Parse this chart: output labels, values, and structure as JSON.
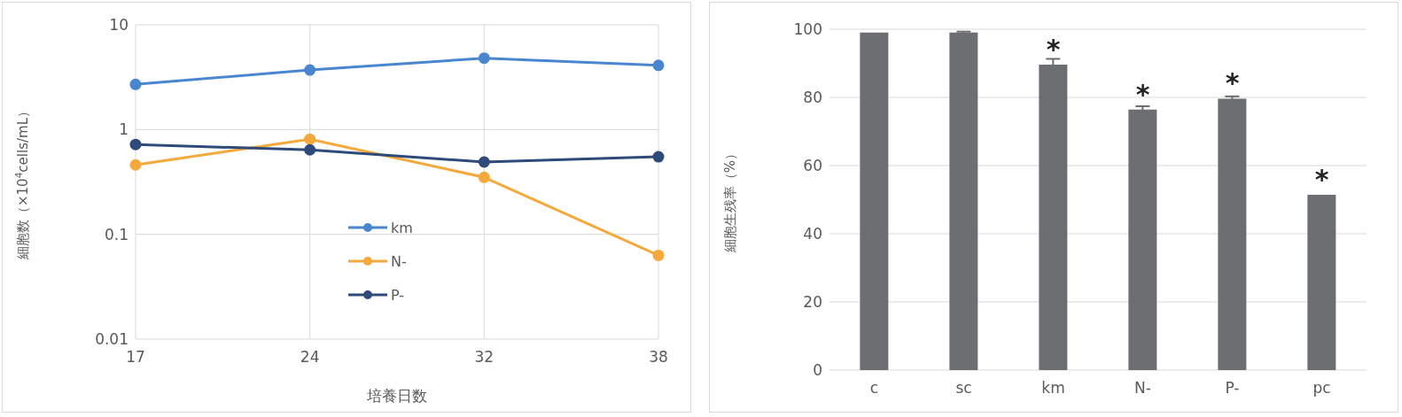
{
  "chart_data": [
    {
      "type": "line",
      "xlabel": "培養日数",
      "ylabel": "細胞数（×10$^{4}$cells/mL）",
      "categories": [
        "17",
        "24",
        "32",
        "38"
      ],
      "log": "y",
      "ylim": [
        0.01,
        10
      ],
      "yticks": [
        0.01,
        0.1,
        1,
        10
      ],
      "grid": true,
      "legend": "bottom",
      "marker": "circle",
      "series": [
        {
          "name": "km",
          "color": "#4a86d0",
          "values": [
            2.7,
            3.7,
            4.8,
            4.1
          ]
        },
        {
          "name": "N-",
          "color": "#f5a93c",
          "values": [
            0.46,
            0.81,
            0.35,
            0.063
          ]
        },
        {
          "name": "P-",
          "color": "#2e4a7a",
          "values": [
            0.72,
            0.64,
            0.49,
            0.55
          ]
        }
      ]
    },
    {
      "type": "bar",
      "ylabel": "細胞生残率（%）",
      "categories": [
        "c",
        "sc",
        "km",
        "N-",
        "P-",
        "pc"
      ],
      "values": [
        99,
        99,
        89.6,
        76.4,
        79.6,
        51.4
      ],
      "errors": [
        null,
        0.3,
        1.7,
        1,
        0.7,
        null
      ],
      "color": "#6d6e72",
      "ylim": [
        0,
        100
      ],
      "yticks": [
        0,
        20,
        40,
        60,
        80,
        100
      ],
      "grid": "y",
      "annotations": [
        {
          "text": "*",
          "x": "km",
          "y": 89.6
        },
        {
          "text": "*",
          "x": "N-",
          "y": 76.4
        },
        {
          "text": "*",
          "x": "P-",
          "y": 79.6
        },
        {
          "text": "*",
          "x": "pc",
          "y": 51.4
        }
      ]
    }
  ]
}
